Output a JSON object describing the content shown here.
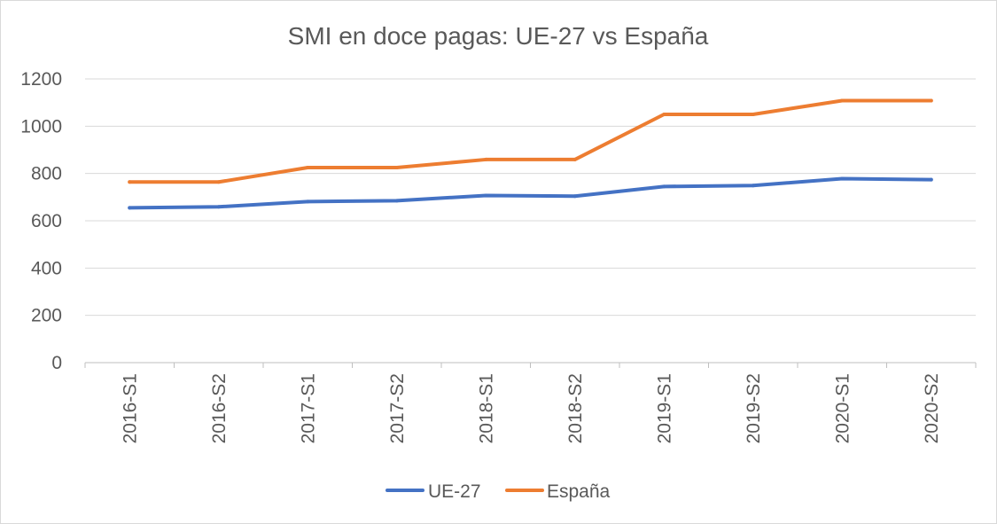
{
  "chart_data": {
    "type": "line",
    "title": "SMI en doce pagas: UE-27 vs España",
    "categories": [
      "2016-S1",
      "2016-S2",
      "2017-S1",
      "2017-S2",
      "2018-S1",
      "2018-S2",
      "2019-S1",
      "2019-S2",
      "2020-S1",
      "2020-S2"
    ],
    "y_ticks": [
      "0",
      "200",
      "400",
      "600",
      "800",
      "1000",
      "1200"
    ],
    "ylim": [
      0,
      1200
    ],
    "grid": true,
    "legend_position": "bottom",
    "series": [
      {
        "name": "UE-27",
        "color": "#4472c4",
        "values": [
          655,
          659,
          681,
          685,
          707,
          704,
          745,
          749,
          778,
          774
        ]
      },
      {
        "name": "España",
        "color": "#ed7d31",
        "values": [
          764,
          764,
          825,
          825,
          859,
          859,
          1050,
          1050,
          1108,
          1108
        ]
      }
    ]
  }
}
